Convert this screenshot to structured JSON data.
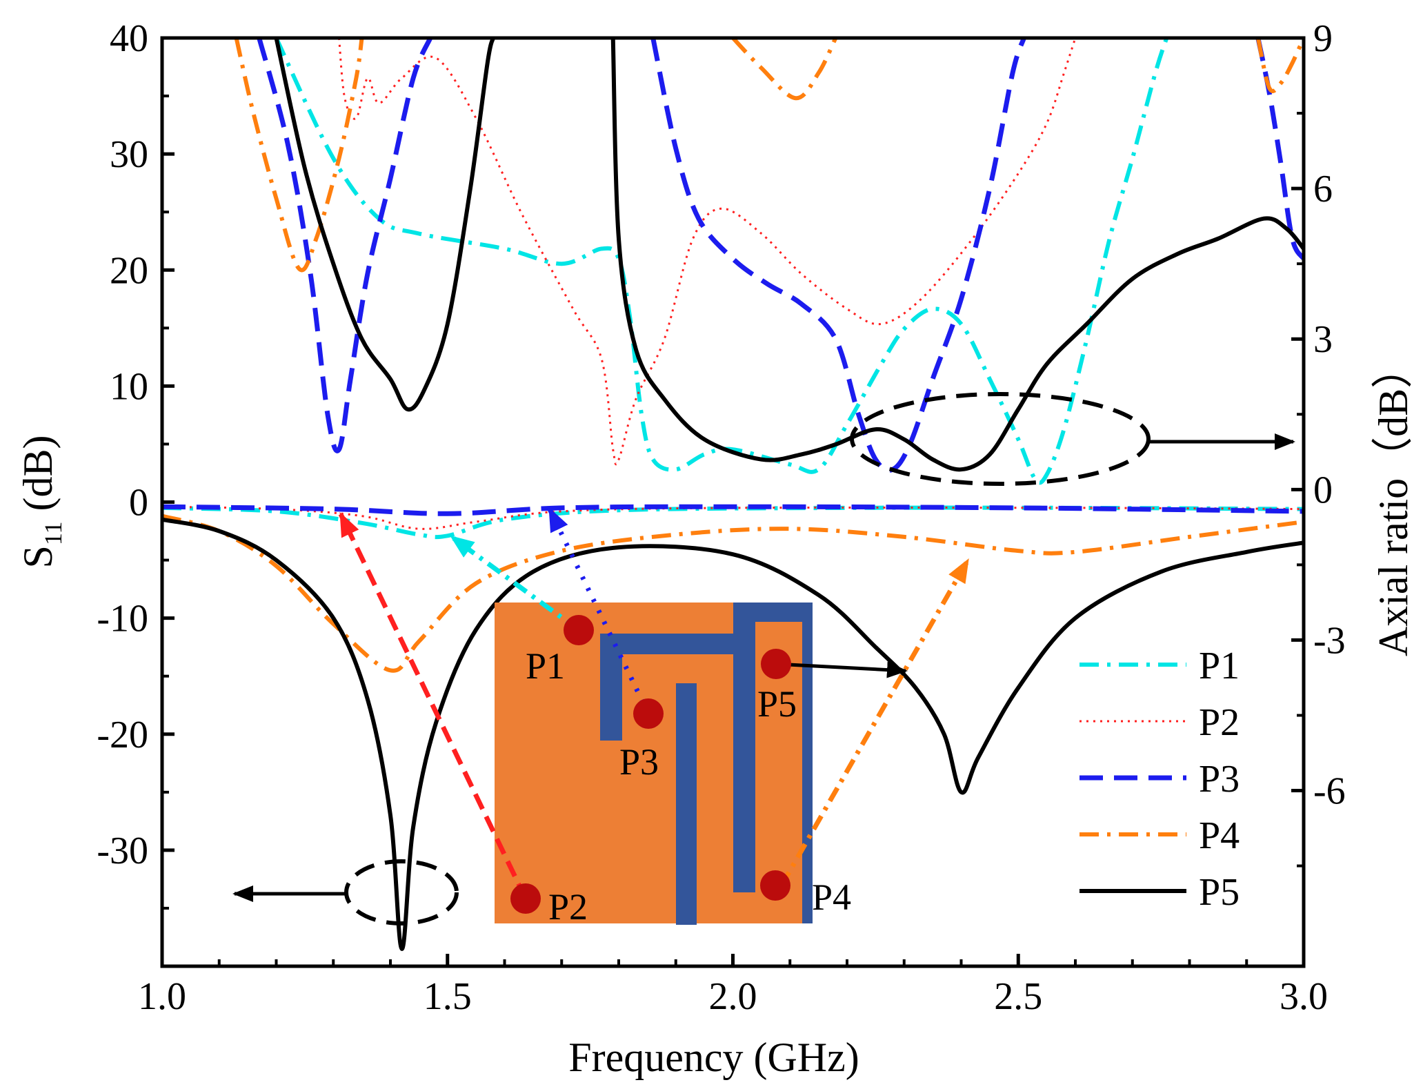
{
  "chart_data": {
    "type": "line",
    "title": "",
    "xlabel": "Frequency (GHz)",
    "ylabel_main": "S",
    "ylabel_sub": "11",
    "ylabel_unit": " (dB)",
    "y2label": "Axial ratio（dB）",
    "xlim": [
      1.0,
      3.0
    ],
    "ylim": [
      -40,
      40
    ],
    "y2lim": [
      -9.5,
      9
    ],
    "xticks": [
      1.0,
      1.5,
      2.0,
      2.5,
      3.0
    ],
    "xtick_labels": [
      "1.0",
      "1.5",
      "2.0",
      "2.5",
      "3.0"
    ],
    "yticks": [
      -30,
      -20,
      -10,
      0,
      10,
      20,
      30,
      40
    ],
    "ytick_labels": [
      "-30",
      "-20",
      "-10",
      "0",
      "10",
      "20",
      "30",
      "40"
    ],
    "y2ticks": [
      -6,
      -3,
      0,
      3,
      6,
      9
    ],
    "y2tick_labels": [
      "-6",
      "-3",
      "0",
      "3",
      "6",
      "9"
    ],
    "legend_position": "right",
    "series": [
      {
        "name": "P1",
        "color": "#00e5e5",
        "dash": "dashdot",
        "s11": [
          [
            1.0,
            -0.5
          ],
          [
            1.2,
            -0.8
          ],
          [
            1.35,
            -1.8
          ],
          [
            1.45,
            -2.8
          ],
          [
            1.5,
            -2.9
          ],
          [
            1.6,
            -1.5
          ],
          [
            1.8,
            -0.7
          ],
          [
            2.2,
            -0.5
          ],
          [
            2.6,
            -0.5
          ],
          [
            3.0,
            -0.6
          ]
        ],
        "ar": [
          [
            1.2,
            9.0
          ],
          [
            1.3,
            6.6
          ],
          [
            1.38,
            5.4
          ],
          [
            1.45,
            5.1
          ],
          [
            1.6,
            4.8
          ],
          [
            1.7,
            4.5
          ],
          [
            1.77,
            4.8
          ],
          [
            1.8,
            4.6
          ],
          [
            1.82,
            3.4
          ],
          [
            1.84,
            1.5
          ],
          [
            1.86,
            0.6
          ],
          [
            1.9,
            0.4
          ],
          [
            1.95,
            0.7
          ],
          [
            2.0,
            0.8
          ],
          [
            2.1,
            0.5
          ],
          [
            2.15,
            0.4
          ],
          [
            2.2,
            1.3
          ],
          [
            2.26,
            2.5
          ],
          [
            2.3,
            3.2
          ],
          [
            2.35,
            3.6
          ],
          [
            2.4,
            3.3
          ],
          [
            2.45,
            2.2
          ],
          [
            2.5,
            1.0
          ],
          [
            2.53,
            0.2
          ],
          [
            2.55,
            0.3
          ],
          [
            2.58,
            1.2
          ],
          [
            2.62,
            3.0
          ],
          [
            2.66,
            5.0
          ],
          [
            2.7,
            6.6
          ],
          [
            2.74,
            8.3
          ],
          [
            2.76,
            9.0
          ]
        ]
      },
      {
        "name": "P2",
        "color": "#ff2020",
        "dash": "dotted",
        "s11": [
          [
            1.0,
            -0.4
          ],
          [
            1.2,
            -0.6
          ],
          [
            1.35,
            -1.2
          ],
          [
            1.45,
            -2.3
          ],
          [
            1.55,
            -1.7
          ],
          [
            1.7,
            -0.8
          ],
          [
            2.0,
            -0.5
          ],
          [
            2.6,
            -0.5
          ],
          [
            3.0,
            -0.6
          ]
        ],
        "ar": [
          [
            1.31,
            9.0
          ],
          [
            1.32,
            7.8
          ],
          [
            1.34,
            7.4
          ],
          [
            1.36,
            8.2
          ],
          [
            1.38,
            7.7
          ],
          [
            1.42,
            8.2
          ],
          [
            1.48,
            8.6
          ],
          [
            1.55,
            7.4
          ],
          [
            1.63,
            5.5
          ],
          [
            1.72,
            3.6
          ],
          [
            1.77,
            2.6
          ],
          [
            1.79,
            0.8
          ],
          [
            1.8,
            0.6
          ],
          [
            1.83,
            1.8
          ],
          [
            1.88,
            3.0
          ],
          [
            1.93,
            5.0
          ],
          [
            1.98,
            5.6
          ],
          [
            2.05,
            5.1
          ],
          [
            2.12,
            4.3
          ],
          [
            2.2,
            3.6
          ],
          [
            2.26,
            3.3
          ],
          [
            2.33,
            3.8
          ],
          [
            2.42,
            5.0
          ],
          [
            2.5,
            6.3
          ],
          [
            2.55,
            7.3
          ],
          [
            2.58,
            8.3
          ],
          [
            2.6,
            9.0
          ]
        ]
      },
      {
        "name": "P3",
        "color": "#1c1cee",
        "dash": "dashed",
        "s11": [
          [
            1.0,
            -0.4
          ],
          [
            1.3,
            -0.6
          ],
          [
            1.5,
            -1.0
          ],
          [
            1.7,
            -0.5
          ],
          [
            2.0,
            -0.4
          ],
          [
            2.5,
            -0.5
          ],
          [
            3.0,
            -0.8
          ]
        ],
        "ar": [
          [
            1.17,
            9.0
          ],
          [
            1.22,
            6.9
          ],
          [
            1.26,
            4.3
          ],
          [
            1.29,
            1.5
          ],
          [
            1.31,
            0.8
          ],
          [
            1.33,
            2.2
          ],
          [
            1.36,
            4.3
          ],
          [
            1.4,
            6.2
          ],
          [
            1.44,
            8.2
          ],
          [
            1.47,
            9.0
          ],
          [
            1.86,
            9.0
          ],
          [
            1.9,
            6.8
          ],
          [
            1.94,
            5.4
          ],
          [
            2.0,
            4.6
          ],
          [
            2.06,
            4.1
          ],
          [
            2.12,
            3.7
          ],
          [
            2.18,
            3.0
          ],
          [
            2.22,
            1.5
          ],
          [
            2.25,
            0.6
          ],
          [
            2.28,
            0.4
          ],
          [
            2.31,
            0.9
          ],
          [
            2.35,
            2.2
          ],
          [
            2.4,
            3.8
          ],
          [
            2.45,
            6.0
          ],
          [
            2.49,
            8.3
          ],
          [
            2.51,
            9.0
          ],
          [
            2.92,
            9.0
          ],
          [
            2.94,
            7.9
          ],
          [
            2.96,
            6.5
          ],
          [
            2.98,
            5.0
          ],
          [
            3.0,
            4.6
          ]
        ]
      },
      {
        "name": "P4",
        "color": "#ff7f0e",
        "dash": "dashdot",
        "s11": [
          [
            1.0,
            -1.2
          ],
          [
            1.1,
            -2.5
          ],
          [
            1.2,
            -5.5
          ],
          [
            1.3,
            -10.5
          ],
          [
            1.4,
            -14.5
          ],
          [
            1.45,
            -12.0
          ],
          [
            1.55,
            -7.0
          ],
          [
            1.7,
            -4.2
          ],
          [
            1.9,
            -2.8
          ],
          [
            2.1,
            -2.3
          ],
          [
            2.3,
            -3.0
          ],
          [
            2.5,
            -4.2
          ],
          [
            2.6,
            -4.3
          ],
          [
            2.8,
            -3.0
          ],
          [
            3.0,
            -1.7
          ]
        ],
        "ar": [
          [
            1.13,
            9.0
          ],
          [
            1.16,
            7.5
          ],
          [
            1.2,
            5.8
          ],
          [
            1.24,
            4.4
          ],
          [
            1.27,
            5.0
          ],
          [
            1.31,
            6.6
          ],
          [
            1.34,
            8.2
          ],
          [
            1.35,
            9.0
          ],
          [
            2.0,
            9.0
          ],
          [
            2.05,
            8.4
          ],
          [
            2.11,
            7.8
          ],
          [
            2.15,
            8.3
          ],
          [
            2.18,
            9.0
          ],
          [
            2.92,
            9.0
          ],
          [
            2.94,
            8.0
          ],
          [
            2.96,
            8.1
          ],
          [
            2.98,
            8.5
          ],
          [
            3.0,
            9.0
          ]
        ]
      },
      {
        "name": "P5",
        "color": "#000000",
        "dash": "solid",
        "s11": [
          [
            1.0,
            -1.5
          ],
          [
            1.1,
            -2.5
          ],
          [
            1.2,
            -5.0
          ],
          [
            1.3,
            -10.0
          ],
          [
            1.36,
            -17.0
          ],
          [
            1.4,
            -27.0
          ],
          [
            1.42,
            -38.5
          ],
          [
            1.44,
            -28.0
          ],
          [
            1.48,
            -19.0
          ],
          [
            1.55,
            -11.0
          ],
          [
            1.65,
            -6.0
          ],
          [
            1.8,
            -3.9
          ],
          [
            2.0,
            -4.5
          ],
          [
            2.15,
            -8.0
          ],
          [
            2.25,
            -12.5
          ],
          [
            2.32,
            -16.0
          ],
          [
            2.37,
            -20.0
          ],
          [
            2.4,
            -25.0
          ],
          [
            2.43,
            -22.0
          ],
          [
            2.5,
            -16.0
          ],
          [
            2.6,
            -10.0
          ],
          [
            2.75,
            -6.0
          ],
          [
            2.9,
            -4.3
          ],
          [
            3.0,
            -3.5
          ]
        ],
        "ar": [
          [
            1.2,
            9.0
          ],
          [
            1.25,
            6.4
          ],
          [
            1.3,
            4.5
          ],
          [
            1.35,
            3.0
          ],
          [
            1.4,
            2.2
          ],
          [
            1.43,
            1.6
          ],
          [
            1.46,
            2.0
          ],
          [
            1.5,
            3.3
          ],
          [
            1.54,
            6.0
          ],
          [
            1.57,
            8.5
          ],
          [
            1.58,
            9.0
          ],
          [
            1.79,
            9.0
          ],
          [
            1.8,
            5.0
          ],
          [
            1.83,
            2.8
          ],
          [
            1.88,
            1.8
          ],
          [
            1.95,
            1.0
          ],
          [
            2.05,
            0.6
          ],
          [
            2.12,
            0.7
          ],
          [
            2.18,
            0.9
          ],
          [
            2.25,
            1.2
          ],
          [
            2.3,
            1.0
          ],
          [
            2.35,
            0.6
          ],
          [
            2.4,
            0.4
          ],
          [
            2.45,
            0.7
          ],
          [
            2.5,
            1.6
          ],
          [
            2.55,
            2.5
          ],
          [
            2.62,
            3.3
          ],
          [
            2.7,
            4.2
          ],
          [
            2.78,
            4.7
          ],
          [
            2.85,
            5.0
          ],
          [
            2.93,
            5.4
          ],
          [
            2.97,
            5.2
          ],
          [
            3.0,
            4.8
          ]
        ]
      }
    ],
    "arrows": {
      "left_arrow_text": "",
      "right_arrow_text": ""
    },
    "inset": {
      "title": "",
      "patch_color": "#ed7f35",
      "strip_color": "#33559a",
      "dot_color": "#bb0c0c",
      "points": [
        {
          "name": "P1",
          "target_x": 1.5,
          "target_y": -2.9,
          "color": "#00e5e5"
        },
        {
          "name": "P2",
          "target_x": 1.32,
          "target_y": -1.0,
          "color": "#ff2020"
        },
        {
          "name": "P3",
          "target_x": 1.65,
          "target_y": -0.5,
          "color": "#1c1cee"
        },
        {
          "name": "P4",
          "target_x": 2.42,
          "target_y": -4.3,
          "color": "#ff7f0e"
        },
        {
          "name": "P5",
          "target_x": 2.3,
          "target_y": -14.5,
          "color": "#000000"
        }
      ]
    }
  }
}
